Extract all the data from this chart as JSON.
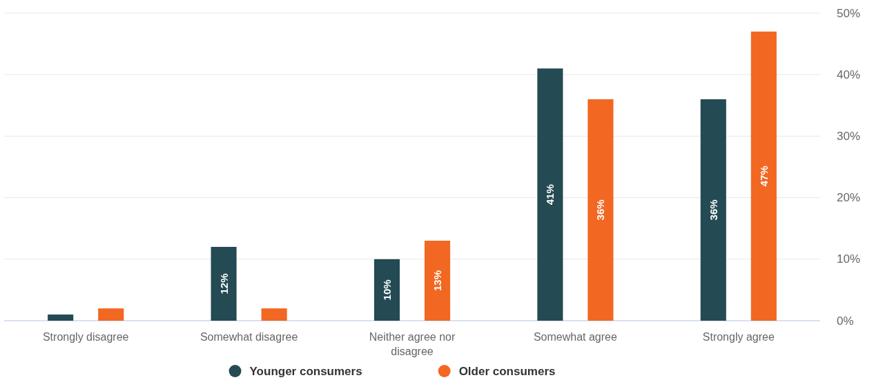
{
  "chart_data": {
    "type": "bar",
    "categories": [
      "Strongly disagree",
      "Somewhat disagree",
      "Neither agree nor disagree",
      "Somewhat agree",
      "Strongly agree"
    ],
    "series": [
      {
        "name": "Younger consumers",
        "color": "#244a54",
        "values": [
          1,
          12,
          10,
          41,
          36
        ],
        "value_labels": [
          null,
          "12%",
          "10%",
          "41%",
          "36%"
        ]
      },
      {
        "name": "Older consumers",
        "color": "#f26722",
        "values": [
          2,
          2,
          13,
          36,
          47
        ],
        "value_labels": [
          null,
          null,
          "13%",
          "36%",
          "47%"
        ]
      }
    ],
    "ylim": [
      0,
      50
    ],
    "yticks": [
      {
        "value": 0,
        "label": "0%"
      },
      {
        "value": 10,
        "label": "10%"
      },
      {
        "value": 20,
        "label": "20%"
      },
      {
        "value": 30,
        "label": "30%"
      },
      {
        "value": 40,
        "label": "40%"
      },
      {
        "value": 50,
        "label": "50%"
      }
    ],
    "grid": "y",
    "legend": "bottom"
  }
}
